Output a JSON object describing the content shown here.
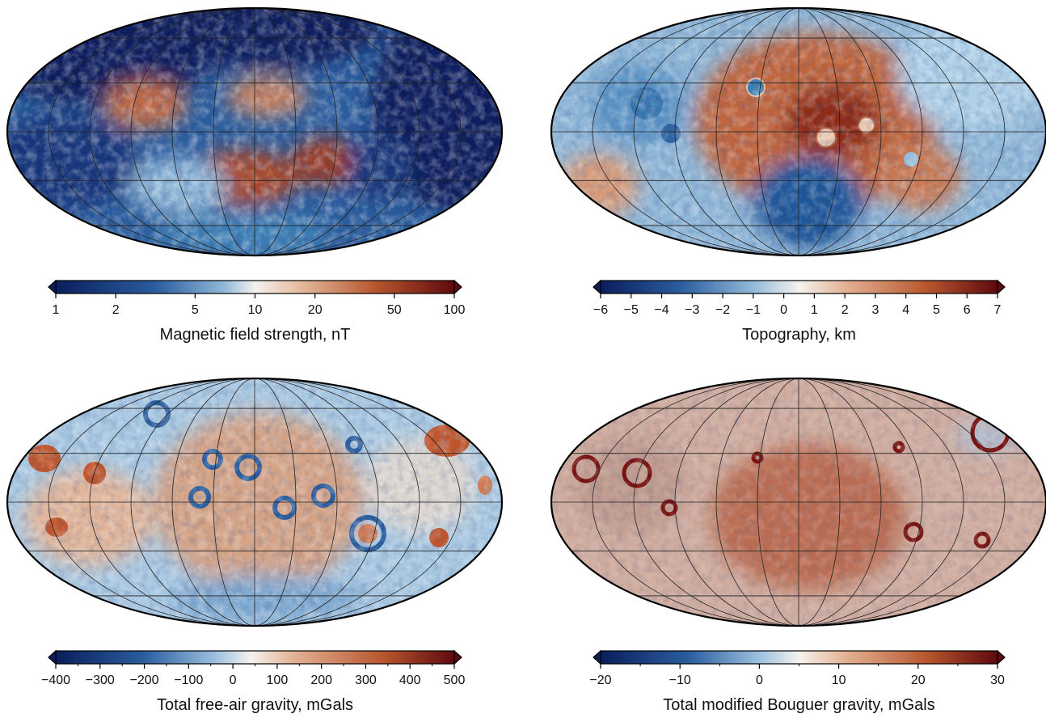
{
  "panels": [
    {
      "id": "magnetic",
      "colorbar": {
        "title": "Magnetic field strength, nT",
        "ticks": [
          {
            "label": "1",
            "value": 1
          },
          {
            "label": "2",
            "value": 2
          },
          {
            "label": "5",
            "value": 5
          },
          {
            "label": "10",
            "value": 10
          },
          {
            "label": "20",
            "value": 20
          },
          {
            "label": "50",
            "value": 50
          },
          {
            "label": "100",
            "value": 100
          }
        ],
        "minor_ticks": [],
        "range": [
          1,
          100
        ],
        "scale": "log",
        "white_at": 10
      }
    },
    {
      "id": "topography",
      "colorbar": {
        "title": "Topography, km",
        "ticks": [
          {
            "label": "−6",
            "value": -6
          },
          {
            "label": "−5",
            "value": -5
          },
          {
            "label": "−4",
            "value": -4
          },
          {
            "label": "−3",
            "value": -3
          },
          {
            "label": "−2",
            "value": -2
          },
          {
            "label": "−1",
            "value": -1
          },
          {
            "label": "0",
            "value": 0
          },
          {
            "label": "1",
            "value": 1
          },
          {
            "label": "2",
            "value": 2
          },
          {
            "label": "3",
            "value": 3
          },
          {
            "label": "4",
            "value": 4
          },
          {
            "label": "5",
            "value": 5
          },
          {
            "label": "6",
            "value": 6
          },
          {
            "label": "7",
            "value": 7
          }
        ],
        "minor_ticks": [],
        "range": [
          -6,
          7
        ],
        "scale": "linear",
        "white_at": 0.5
      }
    },
    {
      "id": "freeair",
      "colorbar": {
        "title": "Total free-air gravity, mGals",
        "ticks": [
          {
            "label": "−400",
            "value": -400
          },
          {
            "label": "−300",
            "value": -300
          },
          {
            "label": "−200",
            "value": -200
          },
          {
            "label": "−100",
            "value": -100
          },
          {
            "label": "0",
            "value": 0
          },
          {
            "label": "100",
            "value": 100
          },
          {
            "label": "200",
            "value": 200
          },
          {
            "label": "300",
            "value": 300
          },
          {
            "label": "400",
            "value": 400
          },
          {
            "label": "500",
            "value": 500
          }
        ],
        "minor_ticks": [
          -350,
          -250,
          -150,
          -50,
          50,
          150,
          250,
          350,
          450
        ],
        "range": [
          -400,
          500
        ],
        "scale": "linear",
        "white_at": 40
      }
    },
    {
      "id": "bouguer",
      "colorbar": {
        "title": "Total modified Bouguer gravity, mGals",
        "ticks": [
          {
            "label": "−20",
            "value": -20
          },
          {
            "label": "−10",
            "value": -10
          },
          {
            "label": "0",
            "value": 0
          },
          {
            "label": "10",
            "value": 10
          },
          {
            "label": "20",
            "value": 20
          },
          {
            "label": "30",
            "value": 30
          }
        ],
        "minor_ticks": [
          -15,
          -5,
          5,
          15,
          25
        ],
        "range": [
          -20,
          30
        ],
        "scale": "linear",
        "white_at": 5
      }
    }
  ],
  "colors": {
    "deep_blue": "#0a1f5c",
    "mid_blue": "#3e7fb5",
    "light_blue": "#bcd6ea",
    "white": "#f7f3ee",
    "light_red": "#e6b79c",
    "mid_red": "#b8572f",
    "deep_red": "#5e0a0e",
    "graticule": "#222222",
    "frame": "#000000"
  }
}
